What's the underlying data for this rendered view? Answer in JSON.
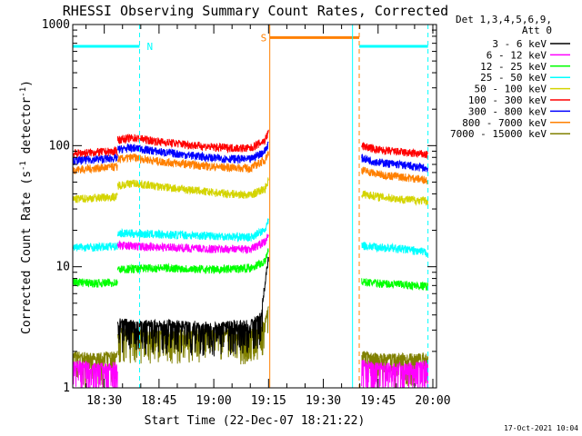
{
  "chart_data": {
    "type": "line",
    "title": "RHESSI Observing Summary Count Rates, Corrected",
    "xlabel": "Start Time (22-Dec-07 18:21:22)",
    "ylabel_main": "Corrected Count Rate (s",
    "ylabel_sup1": "-1",
    "ylabel_mid": " detector",
    "ylabel_sup2": "-1",
    "ylabel_end": ")",
    "y_scale": "log",
    "ylim": [
      1,
      1000
    ],
    "xlim": [
      "18:21:22",
      "20:01:00"
    ],
    "y_ticks": [
      {
        "value": 1,
        "label": "1"
      },
      {
        "value": 10,
        "label": "10"
      },
      {
        "value": 100,
        "label": "100"
      },
      {
        "value": 1000,
        "label": "1000"
      }
    ],
    "x_ticks": [
      {
        "value": "18:30",
        "label": "18:30"
      },
      {
        "value": "18:45",
        "label": "18:45"
      },
      {
        "value": "19:00",
        "label": "19:00"
      },
      {
        "value": "19:15",
        "label": "19:15"
      },
      {
        "value": "19:30",
        "label": "19:30"
      },
      {
        "value": "19:45",
        "label": "19:45"
      },
      {
        "value": "20:00",
        "label": "20:00"
      }
    ],
    "legend_header": [
      "Det 1,3,4,5,6,9,",
      "Att 0"
    ],
    "legend_position": "right",
    "footer_timestamp": "17-Oct-2021 10:04",
    "flags": [
      {
        "label": "N",
        "start": "18:21:22",
        "end": "18:39:40",
        "level": 660,
        "color": "#00ffff"
      },
      {
        "label": "S",
        "start": "19:15:20",
        "end": "19:39:50",
        "level": 780,
        "color": "#ff8000"
      },
      {
        "label": "",
        "start": "19:39:50",
        "end": "19:58:40",
        "level": 660,
        "color": "#00ffff"
      }
    ],
    "markers": [
      {
        "time": "18:39:40",
        "color": "#00ffff",
        "style": "dashed"
      },
      {
        "time": "19:15:20",
        "color": "#ff8000",
        "style": "solid"
      },
      {
        "time": "19:38:00",
        "color": "#00ffff",
        "style": "solid"
      },
      {
        "time": "19:39:50",
        "color": "#ff8000",
        "style": "dashed"
      },
      {
        "time": "19:58:40",
        "color": "#00ffff",
        "style": "dashed"
      }
    ],
    "series": [
      {
        "name": "3 - 6 keV",
        "color": "#000000",
        "segments": [
          {
            "times": [
              "18:33:40",
              "18:45",
              "19:00",
              "19:10",
              "19:13",
              "19:14",
              "19:15"
            ],
            "values": [
              3.5,
              3.4,
              3.3,
              3.4,
              4,
              7,
              12
            ]
          }
        ]
      },
      {
        "name": "6 - 12 keV",
        "color": "#ff00ff",
        "segments": [
          {
            "times": [
              "18:21:22",
              "18:27",
              "18:32",
              "18:33:40"
            ],
            "values": [
              1.6,
              1.5,
              1.5,
              1.6
            ]
          },
          {
            "times": [
              "18:33:40",
              "18:45",
              "19:00",
              "19:10",
              "19:14",
              "19:15"
            ],
            "values": [
              15,
              14.5,
              14,
              14,
              16,
              18
            ]
          },
          {
            "times": [
              "19:40:30",
              "19:45",
              "19:52",
              "19:58:40"
            ],
            "values": [
              1.6,
              1.5,
              1.5,
              1.6
            ]
          }
        ]
      },
      {
        "name": "12 - 25 keV",
        "color": "#00ff00",
        "segments": [
          {
            "times": [
              "18:21:22",
              "18:27",
              "18:33:40"
            ],
            "values": [
              7.5,
              7.3,
              7.4
            ]
          },
          {
            "times": [
              "18:33:40",
              "18:45",
              "19:00",
              "19:10",
              "19:14",
              "19:15"
            ],
            "values": [
              9.5,
              9.8,
              9.5,
              9.8,
              11,
              14
            ]
          },
          {
            "times": [
              "19:40:30",
              "19:45",
              "19:52",
              "19:58:40"
            ],
            "values": [
              7.5,
              7.3,
              7.1,
              6.9
            ]
          }
        ]
      },
      {
        "name": "25 - 50 keV",
        "color": "#00ffff",
        "segments": [
          {
            "times": [
              "18:21:22",
              "18:27",
              "18:33:40"
            ],
            "values": [
              14.5,
              14.5,
              14.8
            ]
          },
          {
            "times": [
              "18:33:40",
              "18:45",
              "19:00",
              "19:10",
              "19:14",
              "19:15"
            ],
            "values": [
              19,
              18.5,
              18,
              17.5,
              20,
              24
            ]
          },
          {
            "times": [
              "19:40:30",
              "19:45",
              "19:52",
              "19:58:40"
            ],
            "values": [
              15,
              14.5,
              14,
              13
            ]
          }
        ]
      },
      {
        "name": "50 - 100 keV",
        "color": "#d4d400",
        "segments": [
          {
            "times": [
              "18:21:22",
              "18:27",
              "18:33:40"
            ],
            "values": [
              36,
              37,
              38
            ]
          },
          {
            "times": [
              "18:33:40",
              "18:38",
              "18:45",
              "19:00",
              "19:10",
              "19:14",
              "19:15"
            ],
            "values": [
              47,
              49,
              46,
              41,
              39,
              44,
              52
            ]
          },
          {
            "times": [
              "19:40:30",
              "19:45",
              "19:52",
              "19:58:40"
            ],
            "values": [
              40,
              38,
              36,
              35
            ]
          }
        ]
      },
      {
        "name": "100 - 300 keV",
        "color": "#ff0000",
        "segments": [
          {
            "times": [
              "18:21:22",
              "18:27",
              "18:33:40"
            ],
            "values": [
              86,
              88,
              90
            ]
          },
          {
            "times": [
              "18:33:40",
              "18:38",
              "18:45",
              "19:00",
              "19:10",
              "19:14",
              "19:15"
            ],
            "values": [
              112,
              116,
              108,
              97,
              95,
              110,
              130
            ]
          },
          {
            "times": [
              "19:40:30",
              "19:45",
              "19:52",
              "19:58:40"
            ],
            "values": [
              100,
              92,
              88,
              84
            ]
          }
        ]
      },
      {
        "name": "300 - 800 keV",
        "color": "#0000ff",
        "segments": [
          {
            "times": [
              "18:21:22",
              "18:27",
              "18:33:40"
            ],
            "values": [
              75,
              77,
              79
            ]
          },
          {
            "times": [
              "18:33:40",
              "18:38",
              "18:45",
              "19:00",
              "19:10",
              "19:14",
              "19:15"
            ],
            "values": [
              93,
              96,
              89,
              79,
              77,
              90,
              105
            ]
          },
          {
            "times": [
              "19:40:30",
              "19:45",
              "19:52",
              "19:58:40"
            ],
            "values": [
              79,
              73,
              69,
              65
            ]
          }
        ]
      },
      {
        "name": "800 - 7000 keV",
        "color": "#ff8000",
        "segments": [
          {
            "times": [
              "18:21:22",
              "18:27",
              "18:33:40"
            ],
            "values": [
              63,
              65,
              67
            ]
          },
          {
            "times": [
              "18:33:40",
              "18:38",
              "18:45",
              "19:00",
              "19:10",
              "19:14",
              "19:15"
            ],
            "values": [
              77,
              80,
              74,
              67,
              65,
              76,
              88
            ]
          },
          {
            "times": [
              "19:40:30",
              "19:45",
              "19:52",
              "19:58:40"
            ],
            "values": [
              63,
              58,
              55,
              52
            ]
          }
        ]
      },
      {
        "name": "7000 - 15000 keV",
        "color": "#808000",
        "segments": [
          {
            "times": [
              "18:21:22",
              "18:27",
              "18:33:40"
            ],
            "values": [
              1.9,
              1.8,
              1.9
            ]
          },
          {
            "times": [
              "18:33:40",
              "18:45",
              "19:00",
              "19:10",
              "19:14",
              "19:15"
            ],
            "values": [
              2.9,
              2.8,
              2.9,
              2.8,
              3.4,
              4.5
            ]
          },
          {
            "times": [
              "19:40:30",
              "19:45",
              "19:52",
              "19:58:40"
            ],
            "values": [
              1.9,
              1.8,
              1.8,
              1.8
            ]
          }
        ]
      }
    ]
  }
}
